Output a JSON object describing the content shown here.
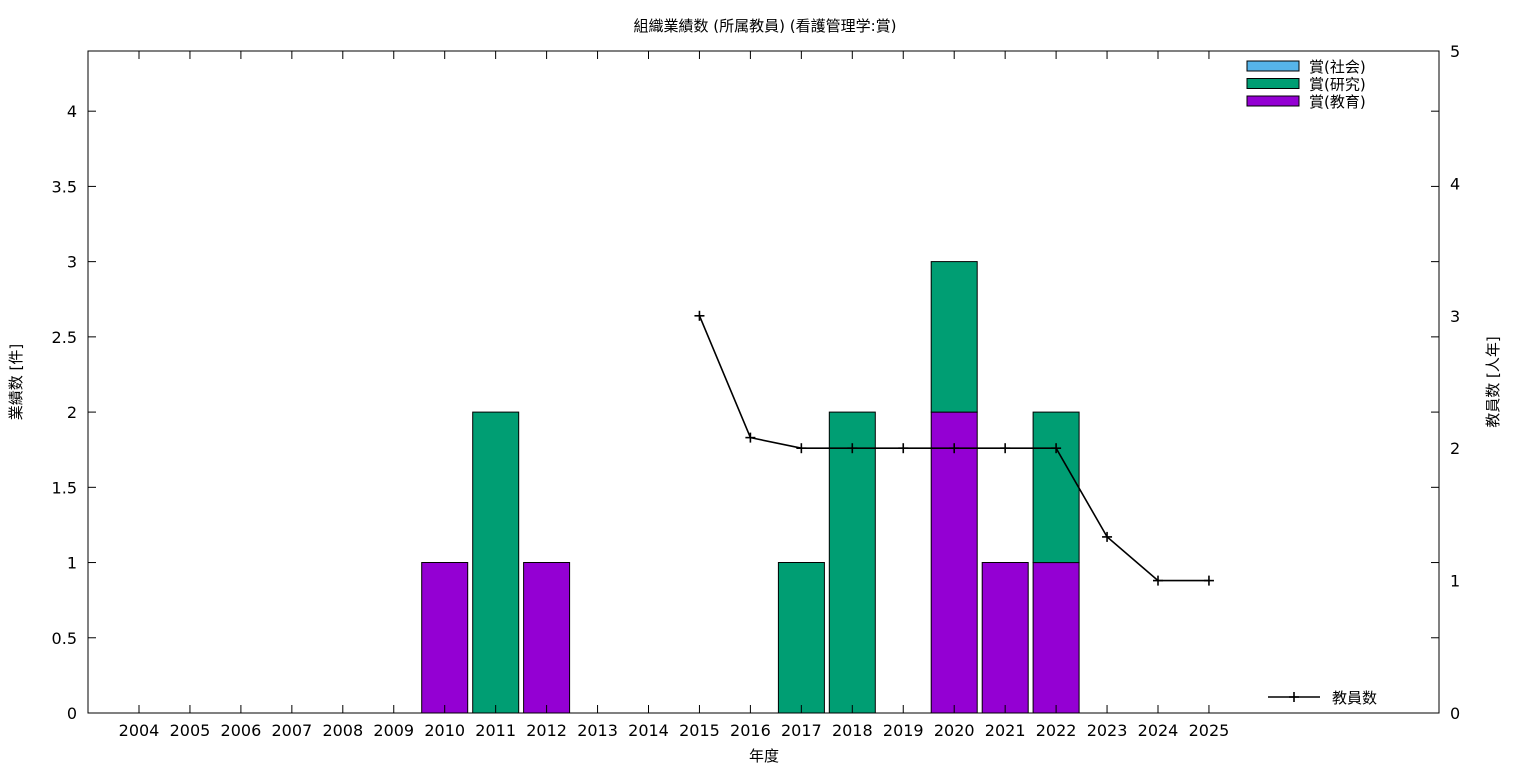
{
  "chart_data": {
    "type": "bar",
    "title": "組織業績数 (所属教員) (看護管理学:賞)",
    "xlabel": "年度",
    "ylabel": "業績数 [件]",
    "y2label": "教員数 [人年]",
    "categories": [
      "2004",
      "2005",
      "2006",
      "2007",
      "2008",
      "2009",
      "2010",
      "2011",
      "2012",
      "2013",
      "2014",
      "2015",
      "2016",
      "2017",
      "2018",
      "2019",
      "2020",
      "2021",
      "2022",
      "2023",
      "2024",
      "2025"
    ],
    "ylim": [
      0,
      4.4
    ],
    "y_ticks": [
      "0",
      "0.5",
      "1",
      "1.5",
      "2",
      "2.5",
      "3",
      "3.5",
      "4"
    ],
    "y2lim": [
      0,
      5
    ],
    "y2_ticks": [
      "0",
      "1",
      "2",
      "3",
      "4",
      "5"
    ],
    "stacked": true,
    "series": [
      {
        "name": "賞(教育)",
        "color": "#9400d3",
        "values": [
          0,
          0,
          0,
          0,
          0,
          0,
          1,
          0,
          1,
          0,
          0,
          0,
          0,
          0,
          0,
          0,
          2,
          1,
          1,
          0,
          0,
          0
        ]
      },
      {
        "name": "賞(研究)",
        "color": "#009e73",
        "values": [
          0,
          0,
          0,
          0,
          0,
          0,
          0,
          2,
          0,
          0,
          0,
          0,
          0,
          1,
          2,
          0,
          1,
          0,
          1,
          0,
          0,
          0
        ]
      },
      {
        "name": "賞(社会)",
        "color": "#56b4e9",
        "values": [
          0,
          0,
          0,
          0,
          0,
          0,
          0,
          0,
          0,
          0,
          0,
          0,
          0,
          0,
          0,
          0,
          0,
          0,
          0,
          0,
          0,
          0
        ]
      }
    ],
    "legend_order": [
      "賞(社会)",
      "賞(研究)",
      "賞(教育)"
    ],
    "legend_position": "top-right",
    "line_series": {
      "name": "教員数",
      "color": "#000000",
      "axis": "y2",
      "x": [
        "2015",
        "2016",
        "2017",
        "2018",
        "2019",
        "2020",
        "2021",
        "2022",
        "2023",
        "2024",
        "2025"
      ],
      "values": [
        3.0,
        2.08,
        2.0,
        2.0,
        2.0,
        2.0,
        2.0,
        2.0,
        1.33,
        1.0,
        1.0
      ]
    },
    "line_legend_position": "bottom-right",
    "grid": false
  }
}
